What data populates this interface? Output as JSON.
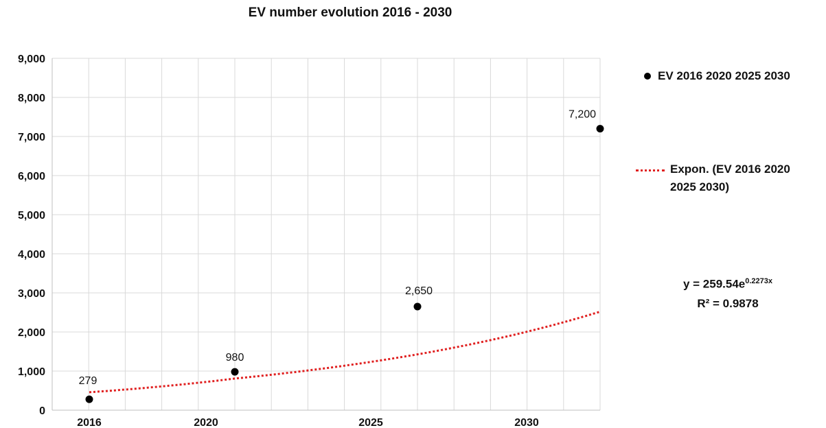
{
  "chart_data": {
    "type": "scatter",
    "title": "EV number evolution 2016 - 2030",
    "xlabel": "",
    "ylabel": "",
    "x_tick_labels": [
      "2016",
      "2020",
      "2025",
      "2030"
    ],
    "y_tick_labels": [
      "0",
      "1,000",
      "2,000",
      "3,000",
      "4,000",
      "5,000",
      "6,000",
      "7,000",
      "8,000",
      "9,000"
    ],
    "ylim": [
      0,
      9000
    ],
    "grid": true,
    "legend_position": "right",
    "series": [
      {
        "name": "EV 2016 2020 2025 2030",
        "color": "#000000",
        "points": [
          {
            "x": 2016,
            "y": 279,
            "label": "279"
          },
          {
            "x": 2020,
            "y": 980,
            "label": "980"
          },
          {
            "x": 2025,
            "y": 2650,
            "label": "2,650"
          },
          {
            "x": 2030,
            "y": 7200,
            "label": "7,200"
          }
        ]
      }
    ],
    "trendline": {
      "name": "Expon. (EV 2016 2020 2025 2030)",
      "type": "exponential",
      "color": "#e02020",
      "a": 259.54,
      "b": 0.2273,
      "equation_prefix": "y = 259.54e",
      "equation_exponent": "0.2273x",
      "r_squared": "R² = 0.9878"
    }
  }
}
